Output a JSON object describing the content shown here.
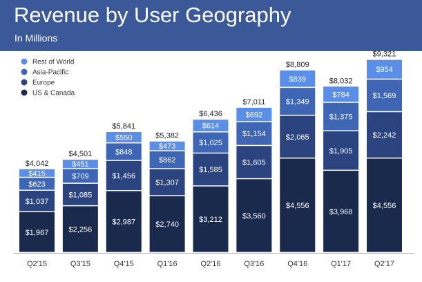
{
  "header": {
    "title": "Revenue by User Geography",
    "subtitle": "In Millions"
  },
  "colors": {
    "header_bg": "#3b5998",
    "rest_of_world": "#5b8ee6",
    "asia_pacific": "#3f66b5",
    "europe": "#2b4480",
    "us_canada": "#192a4d"
  },
  "chart_data": {
    "type": "bar",
    "stacked": true,
    "categories": [
      "Q2'15",
      "Q3'15",
      "Q4'15",
      "Q1'16",
      "Q2'16",
      "Q3'16",
      "Q4'16",
      "Q1'17",
      "Q2'17"
    ],
    "series": [
      {
        "name": "US & Canada",
        "values": [
          1967,
          2256,
          2987,
          2740,
          3212,
          3560,
          4556,
          3968,
          4556
        ],
        "labels": [
          "$1,967",
          "$2,256",
          "$2,987",
          "$2,740",
          "$3,212",
          "$3,560",
          "$4,556",
          "$3,968",
          "$4,556"
        ]
      },
      {
        "name": "Europe",
        "values": [
          1037,
          1085,
          1456,
          1307,
          1585,
          1605,
          2065,
          1905,
          2242
        ],
        "labels": [
          "$1,037",
          "$1,085",
          "$1,456",
          "$1,307",
          "$1,585",
          "$1,605",
          "$2,065",
          "$1,905",
          "$2,242"
        ]
      },
      {
        "name": "Asia-Pacific",
        "values": [
          623,
          709,
          848,
          862,
          1025,
          1154,
          1349,
          1375,
          1569
        ],
        "labels": [
          "$623",
          "$709",
          "$848",
          "$862",
          "$1,025",
          "$1,154",
          "$1,349",
          "$1,375",
          "$1,569"
        ]
      },
      {
        "name": "Rest of World",
        "values": [
          415,
          451,
          550,
          473,
          614,
          692,
          839,
          784,
          954
        ],
        "labels": [
          "$415",
          "$451",
          "$550",
          "$473",
          "$614",
          "$692",
          "$839",
          "$784",
          "$954"
        ]
      }
    ],
    "totals": [
      4042,
      4501,
      5841,
      5382,
      6436,
      7011,
      8809,
      8032,
      9321
    ],
    "total_labels": [
      "$4,042",
      "$4,501",
      "$5,841",
      "$5,382",
      "$6,436",
      "$7,011",
      "$8,809",
      "$8,032",
      "$9,321"
    ],
    "legend": {
      "entries": [
        "Rest of World",
        "Asia-Pacific",
        "Europe",
        "US & Canada"
      ],
      "position": "top-left"
    },
    "ylim": [
      0,
      10000
    ],
    "grid": false,
    "y_axis_visible": false
  }
}
